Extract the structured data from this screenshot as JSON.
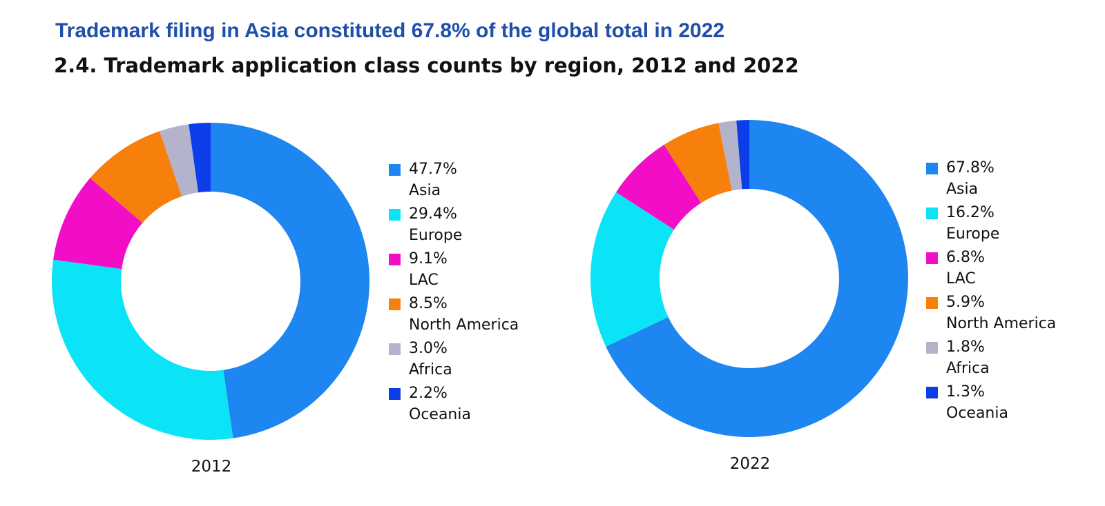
{
  "headline": "Trademark filing in Asia constituted 67.8% of the global total in 2022",
  "subtitle": "2.4. Trademark application class counts by region, 2012 and 2022",
  "chart_data": [
    {
      "type": "pie",
      "variant": "donut",
      "title": "2012",
      "start_angle": "12 o'clock",
      "direction": "clockwise",
      "legend_placement": "right",
      "slices": [
        {
          "label": "Asia",
          "value": 47.7,
          "value_label": "47.7%",
          "color": "#1e86f0"
        },
        {
          "label": "Europe",
          "value": 29.4,
          "value_label": "29.4%",
          "color": "#0be4f7"
        },
        {
          "label": "LAC",
          "value": 9.1,
          "value_label": "9.1%",
          "color": "#f20ec7"
        },
        {
          "label": "North America",
          "value": 8.5,
          "value_label": "8.5%",
          "color": "#f77f0c"
        },
        {
          "label": "Africa",
          "value": 3.0,
          "value_label": "3.0%",
          "color": "#b3b3cc"
        },
        {
          "label": "Oceania",
          "value": 2.2,
          "value_label": "2.2%",
          "color": "#0b3ee8"
        }
      ]
    },
    {
      "type": "pie",
      "variant": "donut",
      "title": "2022",
      "start_angle": "12 o'clock",
      "direction": "clockwise",
      "legend_placement": "right",
      "slices": [
        {
          "label": "Asia",
          "value": 67.8,
          "value_label": "67.8%",
          "color": "#1e86f0"
        },
        {
          "label": "Europe",
          "value": 16.2,
          "value_label": "16.2%",
          "color": "#0be4f7"
        },
        {
          "label": "LAC",
          "value": 6.8,
          "value_label": "6.8%",
          "color": "#f20ec7"
        },
        {
          "label": "North America",
          "value": 5.9,
          "value_label": "5.9%",
          "color": "#f77f0c"
        },
        {
          "label": "Africa",
          "value": 1.8,
          "value_label": "1.8%",
          "color": "#b3b3cc"
        },
        {
          "label": "Oceania",
          "value": 1.3,
          "value_label": "1.3%",
          "color": "#0b3ee8"
        }
      ]
    }
  ]
}
